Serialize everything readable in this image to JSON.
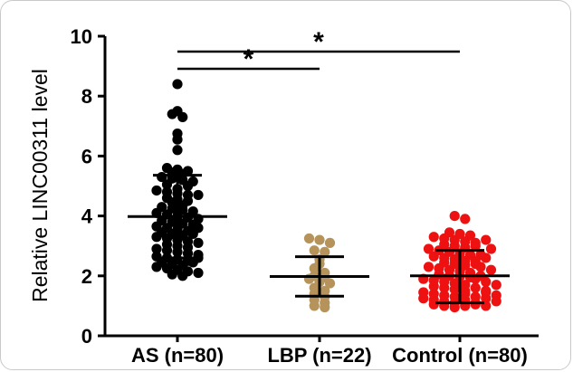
{
  "chart_data": {
    "type": "scatter",
    "ylabel": "Relative LINC00311 level",
    "ylim": [
      0,
      10
    ],
    "yticks": [
      "0",
      "2",
      "4",
      "6",
      "8",
      "10"
    ],
    "categories": [
      "AS (n=80)",
      "LBP (n=22)",
      "Control (n=80)"
    ],
    "series": [
      {
        "color": "#000000",
        "mean": 3.98,
        "sd_low": 2.6,
        "sd_high": 5.36,
        "values": [
          8.4,
          7.5,
          7.4,
          7.3,
          6.75,
          6.55,
          6.2,
          5.6,
          5.55,
          5.5,
          5.45,
          5.4,
          5.3,
          5.25,
          5.2,
          5.15,
          5.05,
          4.9,
          4.85,
          4.8,
          4.75,
          4.7,
          4.6,
          4.55,
          4.5,
          4.45,
          4.35,
          4.3,
          4.25,
          4.2,
          4.15,
          4.1,
          4.05,
          4.0,
          3.95,
          3.9,
          3.85,
          3.8,
          3.75,
          3.7,
          3.65,
          3.6,
          3.55,
          3.5,
          3.45,
          3.4,
          3.35,
          3.3,
          3.25,
          3.2,
          3.15,
          3.1,
          3.05,
          3.0,
          2.95,
          2.9,
          2.85,
          2.8,
          2.75,
          2.7,
          2.65,
          2.6,
          2.55,
          2.5,
          2.45,
          2.4,
          2.35,
          2.3,
          2.25,
          2.2,
          2.15,
          2.1,
          2.05,
          2.0,
          2.45,
          2.6,
          3.4,
          3.6,
          4.7,
          5.0
        ]
      },
      {
        "color": "#b5935a",
        "mean": 1.98,
        "sd_low": 1.32,
        "sd_high": 2.64,
        "values": [
          3.25,
          3.2,
          3.1,
          2.85,
          2.8,
          2.55,
          2.4,
          2.25,
          2.1,
          2.0,
          1.95,
          1.9,
          1.8,
          1.75,
          1.6,
          1.5,
          1.4,
          1.3,
          1.2,
          1.1,
          1.0,
          0.95
        ]
      },
      {
        "color": "#ee1111",
        "mean": 2.0,
        "sd_low": 1.1,
        "sd_high": 2.85,
        "values": [
          4.0,
          3.9,
          3.45,
          3.4,
          3.35,
          3.3,
          3.25,
          3.2,
          3.15,
          3.1,
          3.05,
          3.0,
          2.95,
          2.9,
          2.85,
          2.8,
          2.75,
          2.7,
          2.65,
          2.6,
          2.55,
          2.5,
          2.45,
          2.4,
          2.35,
          2.3,
          2.25,
          2.2,
          2.15,
          2.1,
          2.05,
          2.0,
          1.98,
          1.95,
          1.9,
          1.85,
          1.8,
          1.75,
          1.7,
          1.65,
          1.6,
          1.55,
          1.5,
          1.45,
          1.4,
          1.35,
          1.3,
          1.25,
          1.2,
          1.15,
          1.1,
          1.05,
          1.0,
          0.95,
          2.0,
          1.9,
          1.8,
          1.7,
          1.6,
          1.5,
          1.4,
          1.3,
          1.2,
          1.1,
          1.0,
          2.3,
          2.5,
          2.7,
          1.45,
          1.35,
          1.25,
          1.15,
          1.05,
          3.0,
          3.2,
          2.9,
          2.6,
          2.4,
          2.2,
          1.0
        ]
      }
    ],
    "significance": [
      {
        "from": 0,
        "to": 1,
        "label": "*"
      },
      {
        "from": 0,
        "to": 2,
        "label": "*"
      }
    ]
  }
}
